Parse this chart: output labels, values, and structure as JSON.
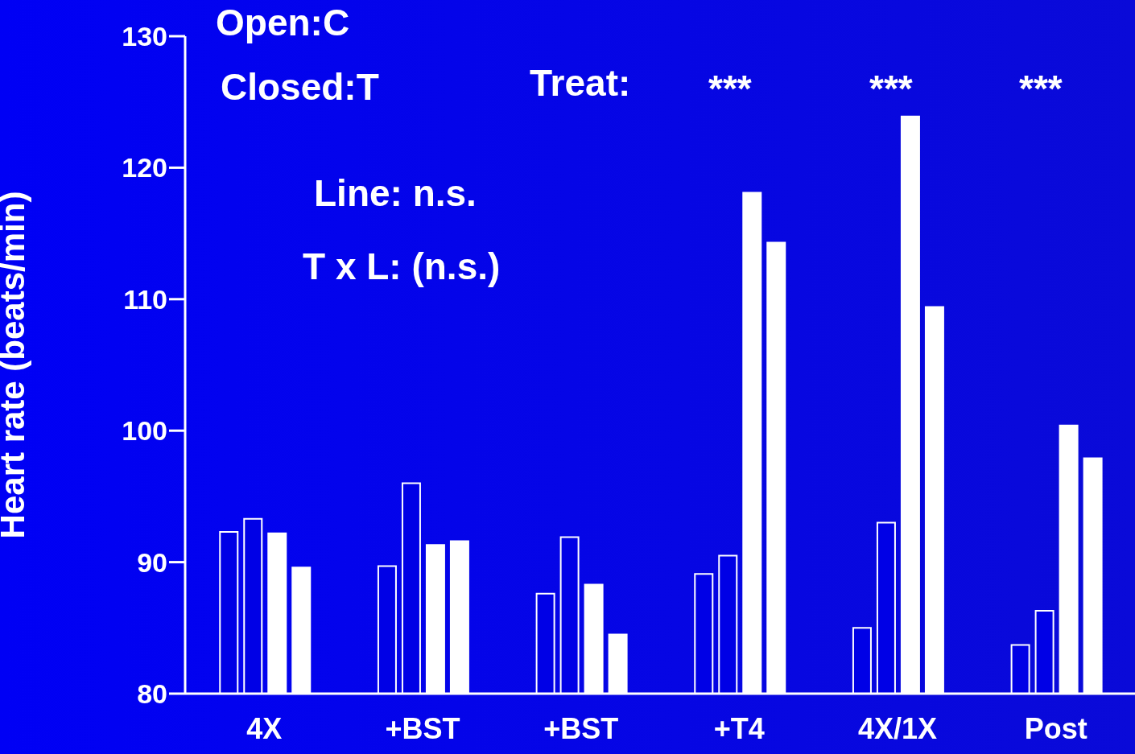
{
  "chart_data": {
    "type": "bar",
    "ylabel": "Heart rate (beats/min)",
    "categories": [
      "4X",
      "+BST",
      "+BST",
      "+T4",
      "4X/1X",
      "Post"
    ],
    "series": [
      {
        "color": "#0000e6",
        "values": [
          92.3,
          89.7,
          87.6,
          89.1,
          85.0,
          83.7
        ]
      },
      {
        "color": "#0000e6",
        "values": [
          93.3,
          96.0,
          91.9,
          90.5,
          93.0,
          86.3
        ]
      },
      {
        "color": "#ffffff",
        "values": [
          92.2,
          91.3,
          88.3,
          118.1,
          123.9,
          100.4
        ]
      },
      {
        "color": "#ffffff",
        "values": [
          89.6,
          91.6,
          84.5,
          114.3,
          109.4,
          97.9
        ]
      }
    ],
    "ylim": [
      80,
      130
    ],
    "yticks": [
      80,
      90,
      100,
      110,
      120,
      130
    ],
    "grid": false,
    "legend": false,
    "annotations": [
      "Open:C",
      "Closed:T",
      "Treat:",
      "***",
      "***",
      "***",
      "Line: n.s.",
      "T x L: (n.s.)"
    ]
  }
}
